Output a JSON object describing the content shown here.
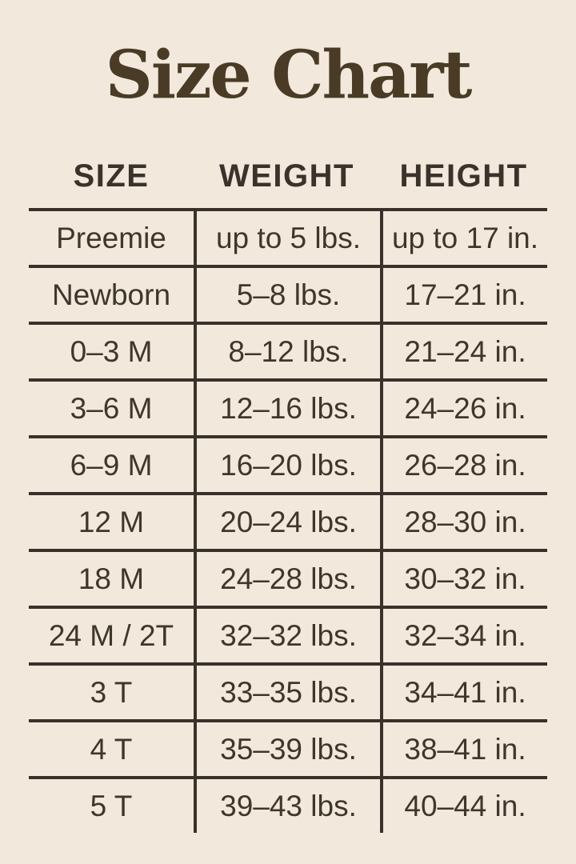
{
  "title": "Size Chart",
  "colors": {
    "background": "#f2e9dc",
    "line": "#3a322a",
    "text": "#3f362c",
    "title": "#4a3b27"
  },
  "chart_data": {
    "type": "table",
    "title": "Size Chart",
    "columns": [
      "SIZE",
      "WEIGHT",
      "HEIGHT"
    ],
    "rows": [
      [
        "Preemie",
        "up to 5 lbs.",
        "up to 17 in."
      ],
      [
        "Newborn",
        "5–8 lbs.",
        "17–21 in."
      ],
      [
        "0–3 M",
        "8–12 lbs.",
        "21–24 in."
      ],
      [
        "3–6 M",
        "12–16 lbs.",
        "24–26 in."
      ],
      [
        "6–9 M",
        "16–20 lbs.",
        "26–28 in."
      ],
      [
        "12 M",
        "20–24 lbs.",
        "28–30 in."
      ],
      [
        "18 M",
        "24–28 lbs.",
        "30–32 in."
      ],
      [
        "24 M / 2T",
        "32–32 lbs.",
        "32–34 in."
      ],
      [
        "3 T",
        "33–35 lbs.",
        "34–41 in."
      ],
      [
        "4 T",
        "35–39 lbs.",
        "38–41 in."
      ],
      [
        "5 T",
        "39–43 lbs.",
        "40–44 in."
      ]
    ]
  }
}
